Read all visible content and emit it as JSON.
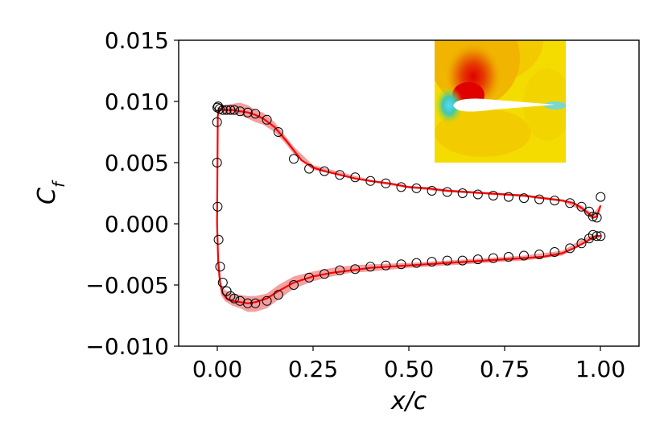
{
  "chart_data": {
    "type": "line",
    "title": "",
    "xlabel": "x/c",
    "ylabel": "C_f",
    "xlim": [
      -0.1,
      1.1
    ],
    "ylim": [
      -0.01,
      0.015
    ],
    "grid": false,
    "legend": "none",
    "x_ticks": [
      "0.00",
      "0.25",
      "0.50",
      "0.75",
      "1.00"
    ],
    "x_tick_values": [
      0.0,
      0.25,
      0.5,
      0.75,
      1.0
    ],
    "y_ticks": [
      "−0.010",
      "−0.005",
      "0.000",
      "0.005",
      "0.010",
      "0.015"
    ],
    "y_tick_values": [
      -0.01,
      -0.005,
      0.0,
      0.005,
      0.01,
      0.015
    ],
    "series": [
      {
        "name": "prediction-upper",
        "style": "line",
        "color": "#ff0000",
        "x": [
          0.0,
          0.002,
          0.005,
          0.01,
          0.02,
          0.04,
          0.06,
          0.08,
          0.1,
          0.12,
          0.15,
          0.18,
          0.2,
          0.22,
          0.25,
          0.28,
          0.32,
          0.36,
          0.4,
          0.45,
          0.5,
          0.55,
          0.6,
          0.65,
          0.7,
          0.75,
          0.8,
          0.85,
          0.9,
          0.93,
          0.95,
          0.97,
          0.98,
          0.99,
          1.0
        ],
        "y": [
          0.0,
          0.0088,
          0.0094,
          0.0094,
          0.0093,
          0.0093,
          0.0092,
          0.0091,
          0.0089,
          0.0086,
          0.0079,
          0.0068,
          0.006,
          0.0052,
          0.0046,
          0.0043,
          0.004,
          0.0037,
          0.0035,
          0.0033,
          0.003,
          0.0029,
          0.0027,
          0.0026,
          0.0025,
          0.0024,
          0.0023,
          0.0021,
          0.0019,
          0.0017,
          0.0013,
          0.0008,
          0.0005,
          0.0006,
          0.0015
        ]
      },
      {
        "name": "prediction-lower",
        "style": "line",
        "color": "#ff0000",
        "x": [
          0.0,
          0.003,
          0.008,
          0.015,
          0.025,
          0.04,
          0.06,
          0.08,
          0.1,
          0.13,
          0.16,
          0.2,
          0.25,
          0.3,
          0.35,
          0.4,
          0.45,
          0.5,
          0.55,
          0.6,
          0.65,
          0.7,
          0.75,
          0.8,
          0.85,
          0.9,
          0.93,
          0.96,
          0.98,
          0.99,
          1.0
        ],
        "y": [
          0.0,
          -0.003,
          -0.0048,
          -0.0057,
          -0.0061,
          -0.0063,
          -0.0064,
          -0.0065,
          -0.0064,
          -0.0061,
          -0.0055,
          -0.0048,
          -0.0043,
          -0.004,
          -0.0038,
          -0.0036,
          -0.0035,
          -0.0034,
          -0.0033,
          -0.0032,
          -0.0031,
          -0.003,
          -0.0029,
          -0.0028,
          -0.0027,
          -0.0024,
          -0.002,
          -0.0015,
          -0.0011,
          -0.001,
          -0.001
        ]
      },
      {
        "name": "reference-upper",
        "style": "markers",
        "marker": "open-circle",
        "color": "#000000",
        "x": [
          0.0,
          0.001,
          0.003,
          0.007,
          0.015,
          0.025,
          0.035,
          0.045,
          0.06,
          0.08,
          0.1,
          0.13,
          0.16,
          0.2,
          0.24,
          0.28,
          0.32,
          0.36,
          0.4,
          0.44,
          0.48,
          0.52,
          0.56,
          0.6,
          0.64,
          0.68,
          0.72,
          0.76,
          0.8,
          0.84,
          0.88,
          0.92,
          0.95,
          0.97,
          0.98,
          0.99,
          1.0
        ],
        "y": [
          0.0083,
          0.0095,
          0.0096,
          0.0094,
          0.0093,
          0.0093,
          0.0093,
          0.0093,
          0.0092,
          0.0091,
          0.009,
          0.0085,
          0.0075,
          0.0053,
          0.0045,
          0.0043,
          0.004,
          0.0038,
          0.0035,
          0.0033,
          0.003,
          0.0029,
          0.0027,
          0.0026,
          0.0025,
          0.0024,
          0.0023,
          0.0022,
          0.0021,
          0.002,
          0.0019,
          0.0017,
          0.0014,
          0.001,
          0.0006,
          0.0005,
          0.0022
        ]
      },
      {
        "name": "reference-lower",
        "style": "markers",
        "marker": "open-circle",
        "color": "#000000",
        "x": [
          0.0,
          0.0015,
          0.004,
          0.008,
          0.015,
          0.025,
          0.035,
          0.045,
          0.06,
          0.08,
          0.1,
          0.13,
          0.16,
          0.2,
          0.24,
          0.28,
          0.32,
          0.36,
          0.4,
          0.44,
          0.48,
          0.52,
          0.56,
          0.6,
          0.64,
          0.68,
          0.72,
          0.76,
          0.8,
          0.84,
          0.88,
          0.92,
          0.95,
          0.97,
          0.98,
          0.99,
          1.0
        ],
        "y": [
          0.005,
          0.0014,
          -0.0013,
          -0.0035,
          -0.0048,
          -0.0055,
          -0.0059,
          -0.0061,
          -0.0063,
          -0.0065,
          -0.0065,
          -0.0063,
          -0.0058,
          -0.005,
          -0.0044,
          -0.0041,
          -0.0038,
          -0.0037,
          -0.0035,
          -0.0034,
          -0.0033,
          -0.0032,
          -0.0031,
          -0.003,
          -0.003,
          -0.0029,
          -0.0028,
          -0.0027,
          -0.0026,
          -0.0025,
          -0.0023,
          -0.002,
          -0.0016,
          -0.0012,
          -0.0009,
          -0.001,
          -0.001
        ]
      }
    ],
    "uncertainty_band": {
      "color": "#f08080",
      "upper": {
        "x": [
          0.0,
          0.01,
          0.02,
          0.04,
          0.06,
          0.08,
          0.1,
          0.12,
          0.15,
          0.18,
          0.2,
          0.25,
          0.3,
          0.4,
          0.5,
          0.6,
          0.7,
          0.8,
          0.9,
          0.95,
          0.98,
          1.0
        ],
        "hi": [
          0.0095,
          0.0096,
          0.0097,
          0.0098,
          0.0099,
          0.0097,
          0.0093,
          0.0091,
          0.0083,
          0.0071,
          0.0063,
          0.0048,
          0.0044,
          0.0036,
          0.0031,
          0.0028,
          0.0026,
          0.0024,
          0.002,
          0.0015,
          0.0008,
          0.0016
        ],
        "lo": [
          0.009,
          0.0092,
          0.009,
          0.009,
          0.0089,
          0.0086,
          0.0083,
          0.0081,
          0.0075,
          0.0065,
          0.0057,
          0.0044,
          0.0041,
          0.0034,
          0.0029,
          0.0026,
          0.0024,
          0.0022,
          0.0018,
          0.0011,
          0.0003,
          0.0013
        ]
      },
      "lower": {
        "x": [
          0.0,
          0.01,
          0.02,
          0.04,
          0.06,
          0.08,
          0.1,
          0.13,
          0.16,
          0.2,
          0.25,
          0.3,
          0.35,
          0.4,
          0.5,
          0.6,
          0.7,
          0.8,
          0.9,
          0.95,
          0.98,
          1.0
        ],
        "hi": [
          -0.003,
          -0.005,
          -0.0054,
          -0.0057,
          -0.0058,
          -0.0059,
          -0.0059,
          -0.0057,
          -0.005,
          -0.0043,
          -0.0039,
          -0.0036,
          -0.0034,
          -0.0033,
          -0.0032,
          -0.003,
          -0.0028,
          -0.0026,
          -0.0022,
          -0.0013,
          -0.0009,
          -0.0009
        ],
        "lo": [
          -0.0035,
          -0.0058,
          -0.0063,
          -0.0067,
          -0.0069,
          -0.0072,
          -0.0072,
          -0.0069,
          -0.0062,
          -0.0053,
          -0.0047,
          -0.0043,
          -0.004,
          -0.0039,
          -0.0036,
          -0.0034,
          -0.0032,
          -0.003,
          -0.0026,
          -0.0017,
          -0.0013,
          -0.0011
        ]
      }
    },
    "inset": {
      "description": "pressure contour field around airfoil",
      "colors": [
        "#f5e000",
        "#f2c800",
        "#eea000",
        "#e87000",
        "#e44000",
        "#e01000",
        "#39d0c0",
        "#5ad8ff",
        "#ffffff"
      ]
    }
  }
}
